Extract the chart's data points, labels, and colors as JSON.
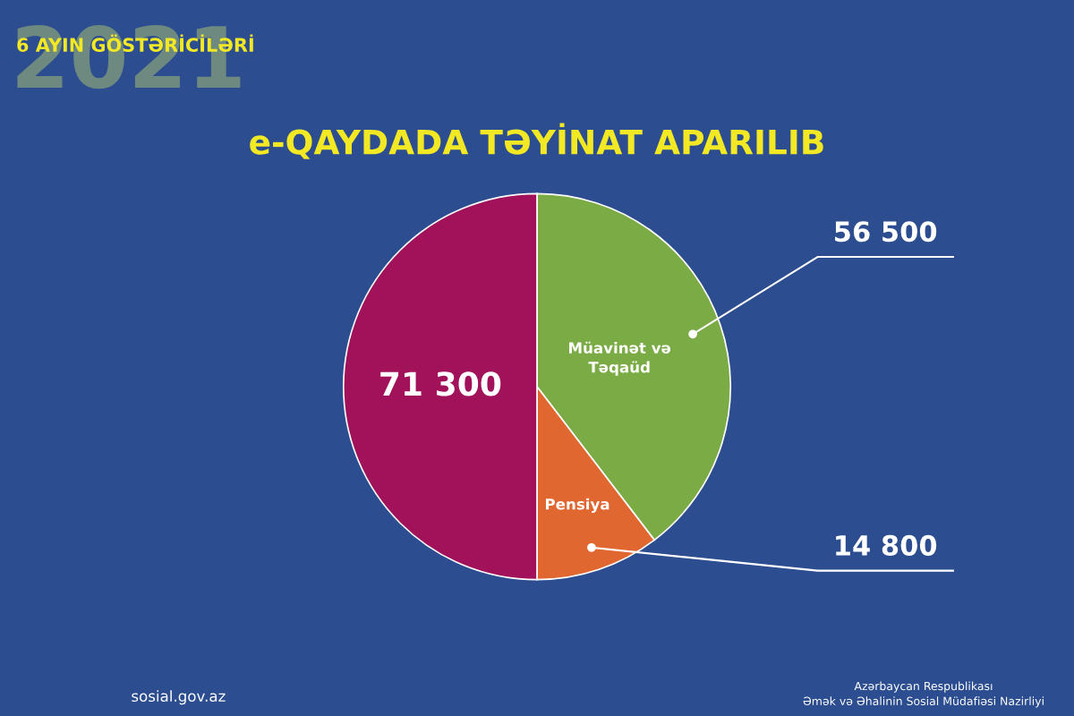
{
  "chart_data": {
    "type": "pie",
    "title": "e-QAYDADA TƏYİNAT APARILIB",
    "categories": [
      "Müavinət və Təqaüd",
      "Pensiya",
      null
    ],
    "values": [
      56500,
      14800,
      71300
    ],
    "value_labels": [
      "56 500",
      "14 800",
      "71 300"
    ],
    "colors": [
      "#7aab45",
      "#e0672f",
      "#a1125b"
    ],
    "annotations": [
      "2021",
      "6 AYIN GÖSTƏRİCİLƏRİ",
      "sosial.gov.az",
      "Azərbaycan Respublikası\nƏmək və Əhalinin Sosial Müdafiəsi Nazirliyi"
    ]
  }
}
